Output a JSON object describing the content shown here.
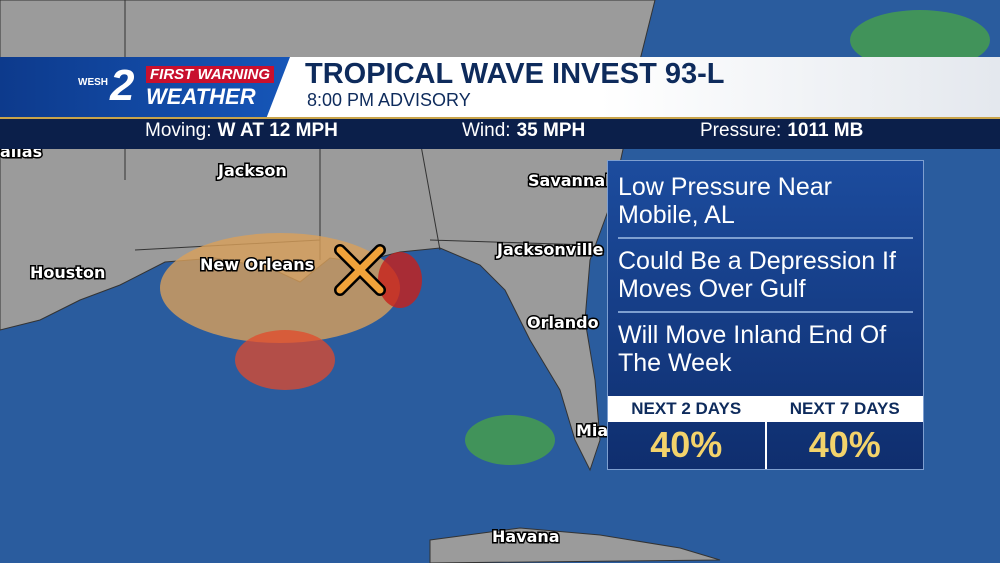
{
  "logo": {
    "station": "WESH",
    "number": "2",
    "line1": "FIRST WARNING",
    "line2": "WEATHER"
  },
  "header": {
    "title": "TROPICAL WAVE INVEST 93-L",
    "subtitle": "8:00 PM ADVISORY"
  },
  "stats": [
    {
      "label": "Moving:",
      "value": "W AT 12 MPH"
    },
    {
      "label": "Wind:",
      "value": "35 MPH"
    },
    {
      "label": "Pressure:",
      "value": "1011 MB"
    }
  ],
  "cities": [
    "allas",
    "Jackson",
    "Savannah",
    "Houston",
    "New Orleans",
    "Jacksonville",
    "Orlando",
    "Mia",
    "Havana"
  ],
  "panel": {
    "notes": [
      "Low Pressure Near Mobile, AL",
      "Could Be a Depression If Moves Over Gulf",
      "Will Move Inland End Of The Week"
    ],
    "outlook": [
      {
        "label": "NEXT 2 DAYS",
        "chance": "40%"
      },
      {
        "label": "NEXT 7 DAYS",
        "chance": "40%"
      }
    ]
  }
}
